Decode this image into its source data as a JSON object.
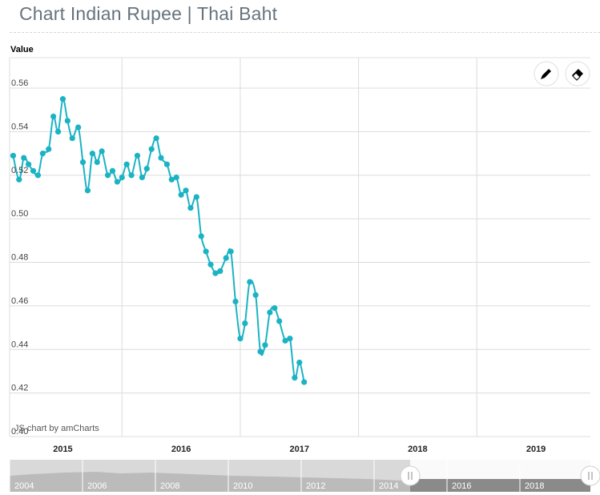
{
  "page_title": "Chart Indian Rupee | Thai Baht",
  "credit": "JS chart by amCharts",
  "colors": {
    "series": "#1bb3c4",
    "grid": "#dcdcdc",
    "axis_text": "#444444",
    "scrollbar": "#cccccc",
    "scrollbar_selected": "#8a8a8a"
  },
  "icons": {
    "draw": "pencil-icon",
    "erase": "eraser-icon"
  },
  "scrollbar": {
    "labels": [
      "2004",
      "2006",
      "2008",
      "2010",
      "2012",
      "2014",
      "2016",
      "2018"
    ]
  },
  "chart_data": {
    "type": "line",
    "title": "",
    "xlabel": "",
    "ylabel": "Value",
    "xlim": [
      2014.55,
      2019.46
    ],
    "ylim": [
      0.4,
      0.574
    ],
    "x_ticks": [
      2015,
      2016,
      2017,
      2018,
      2019
    ],
    "y_ticks": [
      0.4,
      0.42,
      0.44,
      0.46,
      0.48,
      0.5,
      0.52,
      0.54,
      0.56
    ],
    "y_tick_labels": [
      "0.40",
      "0.42",
      "0.44",
      "0.46",
      "0.48",
      "0.50",
      "0.52",
      "0.54",
      "0.56"
    ],
    "grid": true,
    "series": [
      {
        "color": "#1bb3c4",
        "points": [
          [
            2014.58,
            0.529
          ],
          [
            2014.63,
            0.518
          ],
          [
            2014.67,
            0.528
          ],
          [
            2014.71,
            0.525
          ],
          [
            2014.75,
            0.522
          ],
          [
            2014.79,
            0.52
          ],
          [
            2014.83,
            0.53
          ],
          [
            2014.88,
            0.532
          ],
          [
            2014.92,
            0.547
          ],
          [
            2014.96,
            0.54
          ],
          [
            2015.0,
            0.555
          ],
          [
            2015.04,
            0.545
          ],
          [
            2015.08,
            0.537
          ],
          [
            2015.13,
            0.542
          ],
          [
            2015.17,
            0.526
          ],
          [
            2015.21,
            0.513
          ],
          [
            2015.25,
            0.53
          ],
          [
            2015.29,
            0.526
          ],
          [
            2015.33,
            0.531
          ],
          [
            2015.38,
            0.52
          ],
          [
            2015.42,
            0.522
          ],
          [
            2015.46,
            0.517
          ],
          [
            2015.5,
            0.519
          ],
          [
            2015.54,
            0.525
          ],
          [
            2015.58,
            0.52
          ],
          [
            2015.63,
            0.529
          ],
          [
            2015.67,
            0.519
          ],
          [
            2015.71,
            0.523
          ],
          [
            2015.75,
            0.532
          ],
          [
            2015.79,
            0.537
          ],
          [
            2015.83,
            0.528
          ],
          [
            2015.88,
            0.525
          ],
          [
            2015.92,
            0.518
          ],
          [
            2015.96,
            0.519
          ],
          [
            2016.0,
            0.511
          ],
          [
            2016.04,
            0.513
          ],
          [
            2016.08,
            0.505
          ],
          [
            2016.13,
            0.51
          ],
          [
            2016.17,
            0.492
          ],
          [
            2016.21,
            0.485
          ],
          [
            2016.25,
            0.479
          ],
          [
            2016.29,
            0.475
          ],
          [
            2016.33,
            0.476
          ],
          [
            2016.38,
            0.482
          ],
          [
            2016.42,
            0.485
          ],
          [
            2016.46,
            0.462
          ],
          [
            2016.5,
            0.445
          ],
          [
            2016.54,
            0.452
          ],
          [
            2016.58,
            0.471
          ],
          [
            2016.63,
            0.465
          ],
          [
            2016.67,
            0.439
          ],
          [
            2016.71,
            0.442
          ],
          [
            2016.75,
            0.457
          ],
          [
            2016.79,
            0.459
          ],
          [
            2016.83,
            0.453
          ],
          [
            2016.88,
            0.444
          ],
          [
            2016.92,
            0.445
          ],
          [
            2016.96,
            0.427
          ],
          [
            2017.0,
            0.434
          ],
          [
            2017.04,
            0.425
          ]
        ]
      }
    ]
  }
}
